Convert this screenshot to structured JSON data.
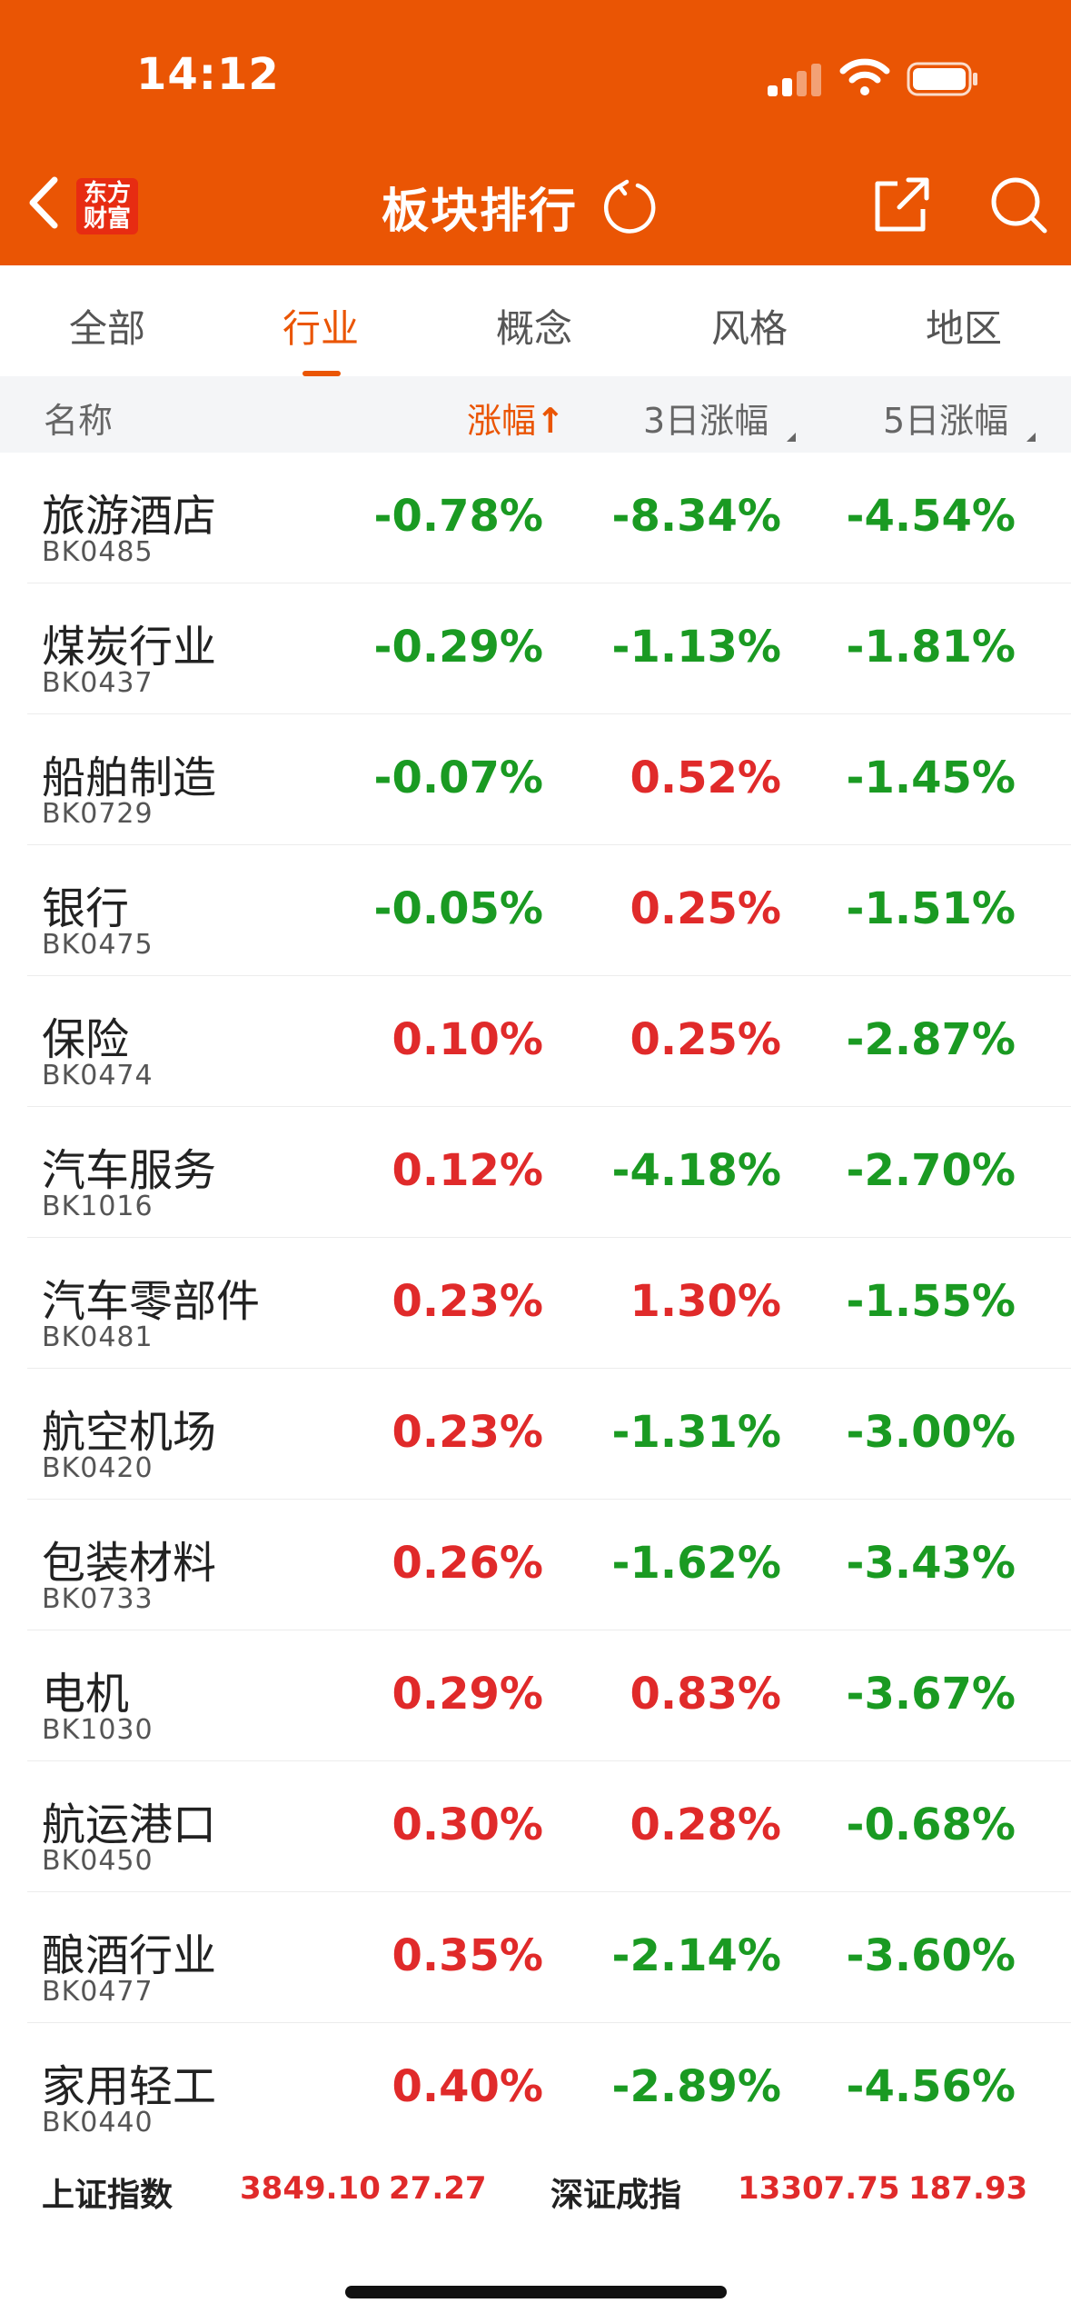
{
  "status": {
    "time": "14:12"
  },
  "header": {
    "logo_line1": "东方",
    "logo_line2": "财富",
    "title": "板块排行",
    "brand_color": "#ea5504",
    "icons": [
      "chevron-left-icon",
      "refresh-icon",
      "share-icon",
      "search-icon"
    ]
  },
  "tabs": [
    {
      "label": "全部"
    },
    {
      "label": "行业",
      "active": true
    },
    {
      "label": "概念"
    },
    {
      "label": "风格"
    },
    {
      "label": "地区"
    }
  ],
  "columns": {
    "name": "名称",
    "change": "涨幅",
    "change_sort": "↑",
    "change3d": "3日涨幅",
    "change5d": "5日涨幅"
  },
  "rows": [
    {
      "name": "旅游酒店",
      "code": "BK0485",
      "v1": "-0.78%",
      "v2": "-8.34%",
      "v3": "-4.54%"
    },
    {
      "name": "煤炭行业",
      "code": "BK0437",
      "v1": "-0.29%",
      "v2": "-1.13%",
      "v3": "-1.81%"
    },
    {
      "name": "船舶制造",
      "code": "BK0729",
      "v1": "-0.07%",
      "v2": "0.52%",
      "v3": "-1.45%"
    },
    {
      "name": "银行",
      "code": "BK0475",
      "v1": "-0.05%",
      "v2": "0.25%",
      "v3": "-1.51%"
    },
    {
      "name": "保险",
      "code": "BK0474",
      "v1": "0.10%",
      "v2": "0.25%",
      "v3": "-2.87%"
    },
    {
      "name": "汽车服务",
      "code": "BK1016",
      "v1": "0.12%",
      "v2": "-4.18%",
      "v3": "-2.70%"
    },
    {
      "name": "汽车零部件",
      "code": "BK0481",
      "v1": "0.23%",
      "v2": "1.30%",
      "v3": "-1.55%"
    },
    {
      "name": "航空机场",
      "code": "BK0420",
      "v1": "0.23%",
      "v2": "-1.31%",
      "v3": "-3.00%"
    },
    {
      "name": "包装材料",
      "code": "BK0733",
      "v1": "0.26%",
      "v2": "-1.62%",
      "v3": "-3.43%"
    },
    {
      "name": "电机",
      "code": "BK1030",
      "v1": "0.29%",
      "v2": "0.83%",
      "v3": "-3.67%"
    },
    {
      "name": "航运港口",
      "code": "BK0450",
      "v1": "0.30%",
      "v2": "0.28%",
      "v3": "-0.68%"
    },
    {
      "name": "酿酒行业",
      "code": "BK0477",
      "v1": "0.35%",
      "v2": "-2.14%",
      "v3": "-3.60%"
    },
    {
      "name": "家用轻工",
      "code": "BK0440",
      "v1": "0.40%",
      "v2": "-2.89%",
      "v3": "-4.56%"
    }
  ],
  "index_bar": {
    "sh_label": "上证指数",
    "sh_value": "3849.10",
    "sh_change": "27.27",
    "sz_label": "深证成指",
    "sz_value": "13307.75",
    "sz_change": "187.93"
  },
  "colors": {
    "up": "#e02a2a",
    "down": "#1a9a22"
  }
}
